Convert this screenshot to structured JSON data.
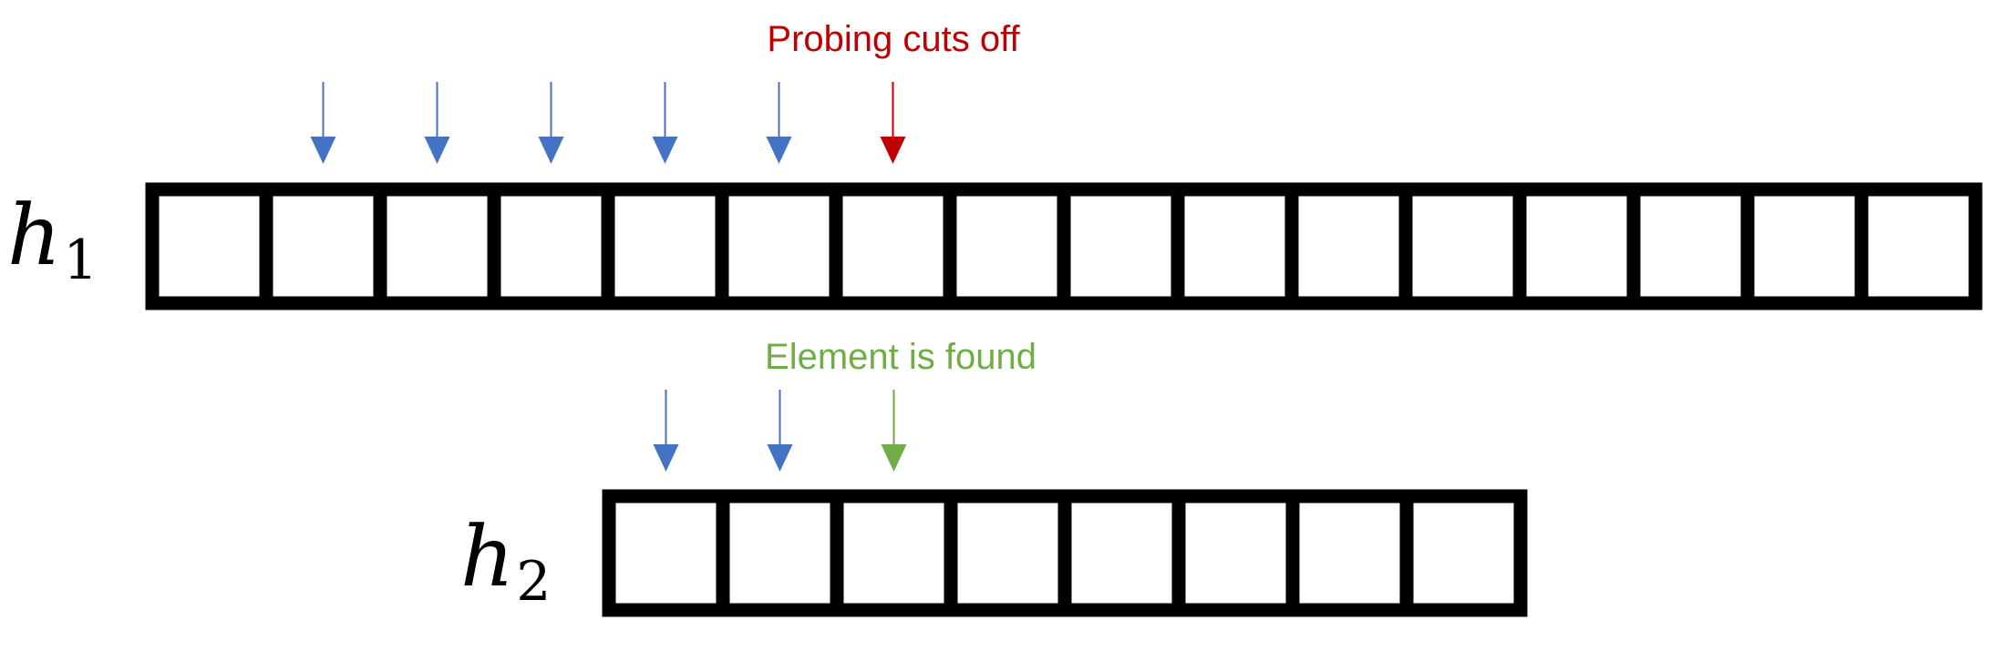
{
  "colors": {
    "probe": "#4472c4",
    "cutoff": "#c00000",
    "found": "#70ad47",
    "cell_border": "#000000"
  },
  "table_h1": {
    "label_base": "h",
    "label_sub": "1",
    "cell_count": 16,
    "caption": "Probing cuts off",
    "probe_arrows": [
      {
        "cell": 1,
        "status": "probe"
      },
      {
        "cell": 2,
        "status": "probe"
      },
      {
        "cell": 3,
        "status": "probe"
      },
      {
        "cell": 4,
        "status": "probe"
      },
      {
        "cell": 5,
        "status": "probe"
      },
      {
        "cell": 6,
        "status": "cutoff"
      }
    ]
  },
  "table_h2": {
    "label_base": "h",
    "label_sub": "2",
    "cell_count": 8,
    "caption": "Element is found",
    "probe_arrows": [
      {
        "cell": 0,
        "status": "probe"
      },
      {
        "cell": 1,
        "status": "probe"
      },
      {
        "cell": 2,
        "status": "found"
      }
    ]
  }
}
